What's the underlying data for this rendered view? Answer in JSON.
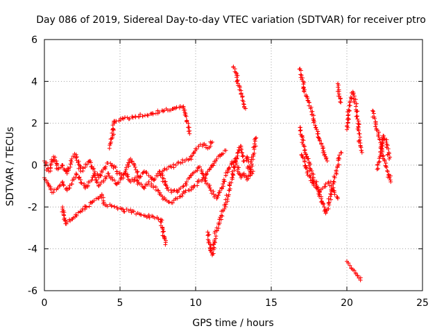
{
  "chart_data": {
    "type": "scatter",
    "title": "Day 086 of 2019, Sidereal Day-to-day VTEC variation (SDTVAR) for receiver ptro",
    "xlabel": "GPS time / hours",
    "ylabel": "SDTVAR / TECUs",
    "xlim": [
      0,
      25
    ],
    "ylim": [
      -6,
      6
    ],
    "xticks": [
      0,
      5,
      10,
      15,
      20,
      25
    ],
    "yticks": [
      -6,
      -4,
      -2,
      0,
      2,
      4,
      6
    ],
    "grid": true,
    "marker": "plus",
    "color": "#ff0000",
    "series": [
      {
        "name": "SDTVAR",
        "segments": [
          {
            "x": [
              0.0,
              0.3,
              0.6,
              0.9,
              1.2,
              1.5,
              1.8,
              2.1,
              2.4,
              2.7,
              3.0,
              3.3,
              3.6,
              3.9,
              4.2,
              4.5,
              4.8,
              5.1,
              5.4,
              5.7,
              6.0,
              6.3,
              6.6,
              6.9,
              7.2,
              7.5,
              7.8,
              8.1,
              8.4,
              8.7,
              9.0,
              9.3,
              9.6,
              9.9,
              10.2,
              10.5,
              10.8,
              11.1
            ],
            "y": [
              0.2,
              -0.3,
              0.4,
              -0.2,
              0.0,
              -0.4,
              0.3,
              0.5,
              -0.3,
              -0.1,
              0.2,
              -0.4,
              -0.6,
              -0.2,
              0.1,
              0.0,
              -0.3,
              -0.5,
              -0.2,
              0.3,
              -0.1,
              -0.6,
              -0.3,
              -0.5,
              -0.7,
              -0.4,
              -0.3,
              -0.2,
              -0.1,
              0.0,
              0.1,
              0.2,
              0.3,
              0.6,
              0.9,
              1.0,
              0.8,
              1.1
            ]
          },
          {
            "x": [
              0.0,
              0.3,
              0.6,
              0.9,
              1.2,
              1.5,
              1.8,
              2.1,
              2.4,
              2.7,
              3.0,
              3.3,
              3.6,
              3.9,
              4.2,
              4.5,
              4.8,
              5.1,
              5.4,
              5.7,
              6.0,
              6.3,
              6.6,
              6.9,
              7.2,
              7.5,
              7.8,
              8.1,
              8.4,
              8.7,
              9.0,
              9.3,
              9.6,
              9.9,
              10.2,
              10.5,
              10.8,
              11.1,
              11.4,
              11.7,
              12.0
            ],
            "y": [
              -0.6,
              -1.0,
              -1.3,
              -1.1,
              -0.8,
              -1.2,
              -0.9,
              -0.4,
              -0.7,
              -1.1,
              -0.8,
              -0.5,
              -1.0,
              -0.8,
              -0.4,
              -0.7,
              -0.9,
              -0.6,
              -0.4,
              -0.8,
              -0.6,
              -0.9,
              -1.1,
              -0.8,
              -1.0,
              -1.2,
              -1.5,
              -1.7,
              -1.8,
              -1.6,
              -1.5,
              -1.3,
              -1.2,
              -1.0,
              -0.8,
              -0.6,
              -0.3,
              0.0,
              0.3,
              0.5,
              0.7
            ]
          },
          {
            "x": [
              7.6,
              7.8,
              8.0,
              8.2,
              8.4,
              8.6,
              8.8,
              9.0,
              9.2,
              9.4,
              9.6,
              9.8,
              10.0,
              10.2,
              10.4,
              10.6,
              10.8,
              11.0,
              11.2,
              11.4,
              11.6,
              11.8,
              12.0,
              12.2,
              12.4,
              12.6,
              12.8,
              13.0,
              13.2,
              13.4,
              13.6,
              13.8
            ],
            "y": [
              -0.3,
              -0.6,
              -0.9,
              -1.2,
              -1.3,
              -1.2,
              -1.3,
              -1.1,
              -1.0,
              -0.8,
              -0.6,
              -0.4,
              -0.3,
              -0.1,
              -0.3,
              -0.6,
              -0.9,
              -1.2,
              -1.4,
              -1.6,
              -1.3,
              -0.9,
              -0.5,
              -0.2,
              0.1,
              0.3,
              -0.2,
              -0.6,
              -0.4,
              -0.7,
              -0.5,
              -0.3
            ]
          },
          {
            "x": [
              1.2,
              1.3,
              1.4,
              3.8,
              3.9,
              4.0,
              7.7,
              7.8,
              7.9,
              8.0
            ],
            "y": [
              -2.0,
              -2.6,
              -2.8,
              -1.4,
              -1.7,
              -1.9,
              -2.6,
              -3.0,
              -3.4,
              -3.8
            ]
          },
          {
            "x": [
              4.3,
              4.4,
              4.5,
              4.6,
              9.2,
              9.3,
              9.4,
              9.5,
              9.6
            ],
            "y": [
              0.8,
              1.1,
              1.3,
              2.1,
              2.8,
              2.4,
              2.1,
              1.8,
              1.5
            ]
          },
          {
            "x": [
              10.8,
              10.9,
              11.0,
              11.1,
              11.2,
              11.4,
              11.6,
              11.8,
              12.0,
              12.2,
              12.4,
              12.6,
              12.8,
              13.0,
              13.2,
              13.4,
              13.6,
              13.8,
              14.0
            ],
            "y": [
              -3.2,
              -3.7,
              -4.1,
              -4.3,
              -3.8,
              -3.0,
              -2.6,
              -2.2,
              -1.8,
              -1.2,
              -0.6,
              0.2,
              0.6,
              0.9,
              0.2,
              0.4,
              -0.4,
              0.5,
              1.3
            ]
          },
          {
            "x": [
              12.5,
              12.6,
              12.7,
              12.8,
              12.9,
              13.0,
              13.1,
              13.2,
              13.3
            ],
            "y": [
              4.7,
              4.6,
              4.3,
              3.9,
              3.6,
              3.4,
              3.1,
              2.9,
              2.7
            ]
          },
          {
            "x": [
              16.9,
              17.0,
              17.1,
              17.2,
              17.3,
              17.4,
              17.5,
              17.6,
              17.7,
              17.8,
              17.9,
              18.0,
              18.1,
              18.2,
              18.3,
              18.4,
              18.5,
              18.6,
              18.7
            ],
            "y": [
              4.6,
              4.3,
              4.0,
              3.6,
              3.3,
              3.2,
              3.0,
              2.7,
              2.4,
              2.2,
              1.9,
              1.7,
              1.5,
              1.2,
              1.0,
              0.8,
              0.6,
              0.4,
              0.2
            ]
          },
          {
            "x": [
              16.9,
              17.0,
              17.1,
              17.2,
              17.3,
              17.4,
              17.5,
              17.6,
              17.7,
              17.8,
              17.9,
              18.0,
              18.1,
              18.2,
              18.3,
              18.4,
              18.5,
              18.6,
              18.7,
              18.8,
              18.9,
              19.0,
              19.1,
              19.2,
              19.3,
              19.4,
              19.5,
              19.6
            ],
            "y": [
              1.8,
              1.4,
              1.0,
              0.7,
              0.5,
              0.3,
              0.1,
              -0.2,
              -0.4,
              -0.6,
              -0.8,
              -1.0,
              -1.2,
              -1.4,
              -1.6,
              -1.8,
              -2.0,
              -2.3,
              -2.1,
              -1.8,
              -1.5,
              -1.2,
              -0.9,
              -0.6,
              -0.3,
              0.0,
              0.3,
              0.6
            ]
          },
          {
            "x": [
              17.0,
              17.2,
              17.4,
              17.6,
              17.8,
              18.0,
              18.2,
              18.4,
              18.6,
              18.8,
              19.0,
              19.2,
              19.4
            ],
            "y": [
              0.5,
              0.2,
              -0.3,
              -0.6,
              -0.9,
              -1.1,
              -1.3,
              -1.1,
              -0.9,
              -0.8,
              -1.0,
              -1.4,
              -1.6
            ]
          },
          {
            "x": [
              19.4,
              19.5,
              19.6
            ],
            "y": [
              3.9,
              3.3,
              3.0
            ]
          },
          {
            "x": [
              20.0,
              20.2,
              20.4,
              20.6,
              20.8,
              20.9
            ],
            "y": [
              -4.6,
              -4.8,
              -5.0,
              -5.2,
              -5.4,
              -5.5
            ]
          },
          {
            "x": [
              20.0,
              20.1,
              20.2,
              20.3,
              20.4,
              20.5,
              20.6,
              20.7,
              20.8,
              20.9,
              21.0
            ],
            "y": [
              1.7,
              2.4,
              3.0,
              3.2,
              3.5,
              3.3,
              2.8,
              2.2,
              1.5,
              0.9,
              0.6
            ]
          },
          {
            "x": [
              21.7,
              21.9,
              22.1,
              22.3,
              22.5,
              22.7,
              22.9
            ],
            "y": [
              2.6,
              2.0,
              1.4,
              0.8,
              0.2,
              -0.3,
              -0.8
            ]
          },
          {
            "x": [
              22.0,
              22.2,
              22.4,
              22.6,
              22.8
            ],
            "y": [
              -0.2,
              0.4,
              1.4,
              1.1,
              0.3
            ]
          }
        ]
      }
    ]
  }
}
